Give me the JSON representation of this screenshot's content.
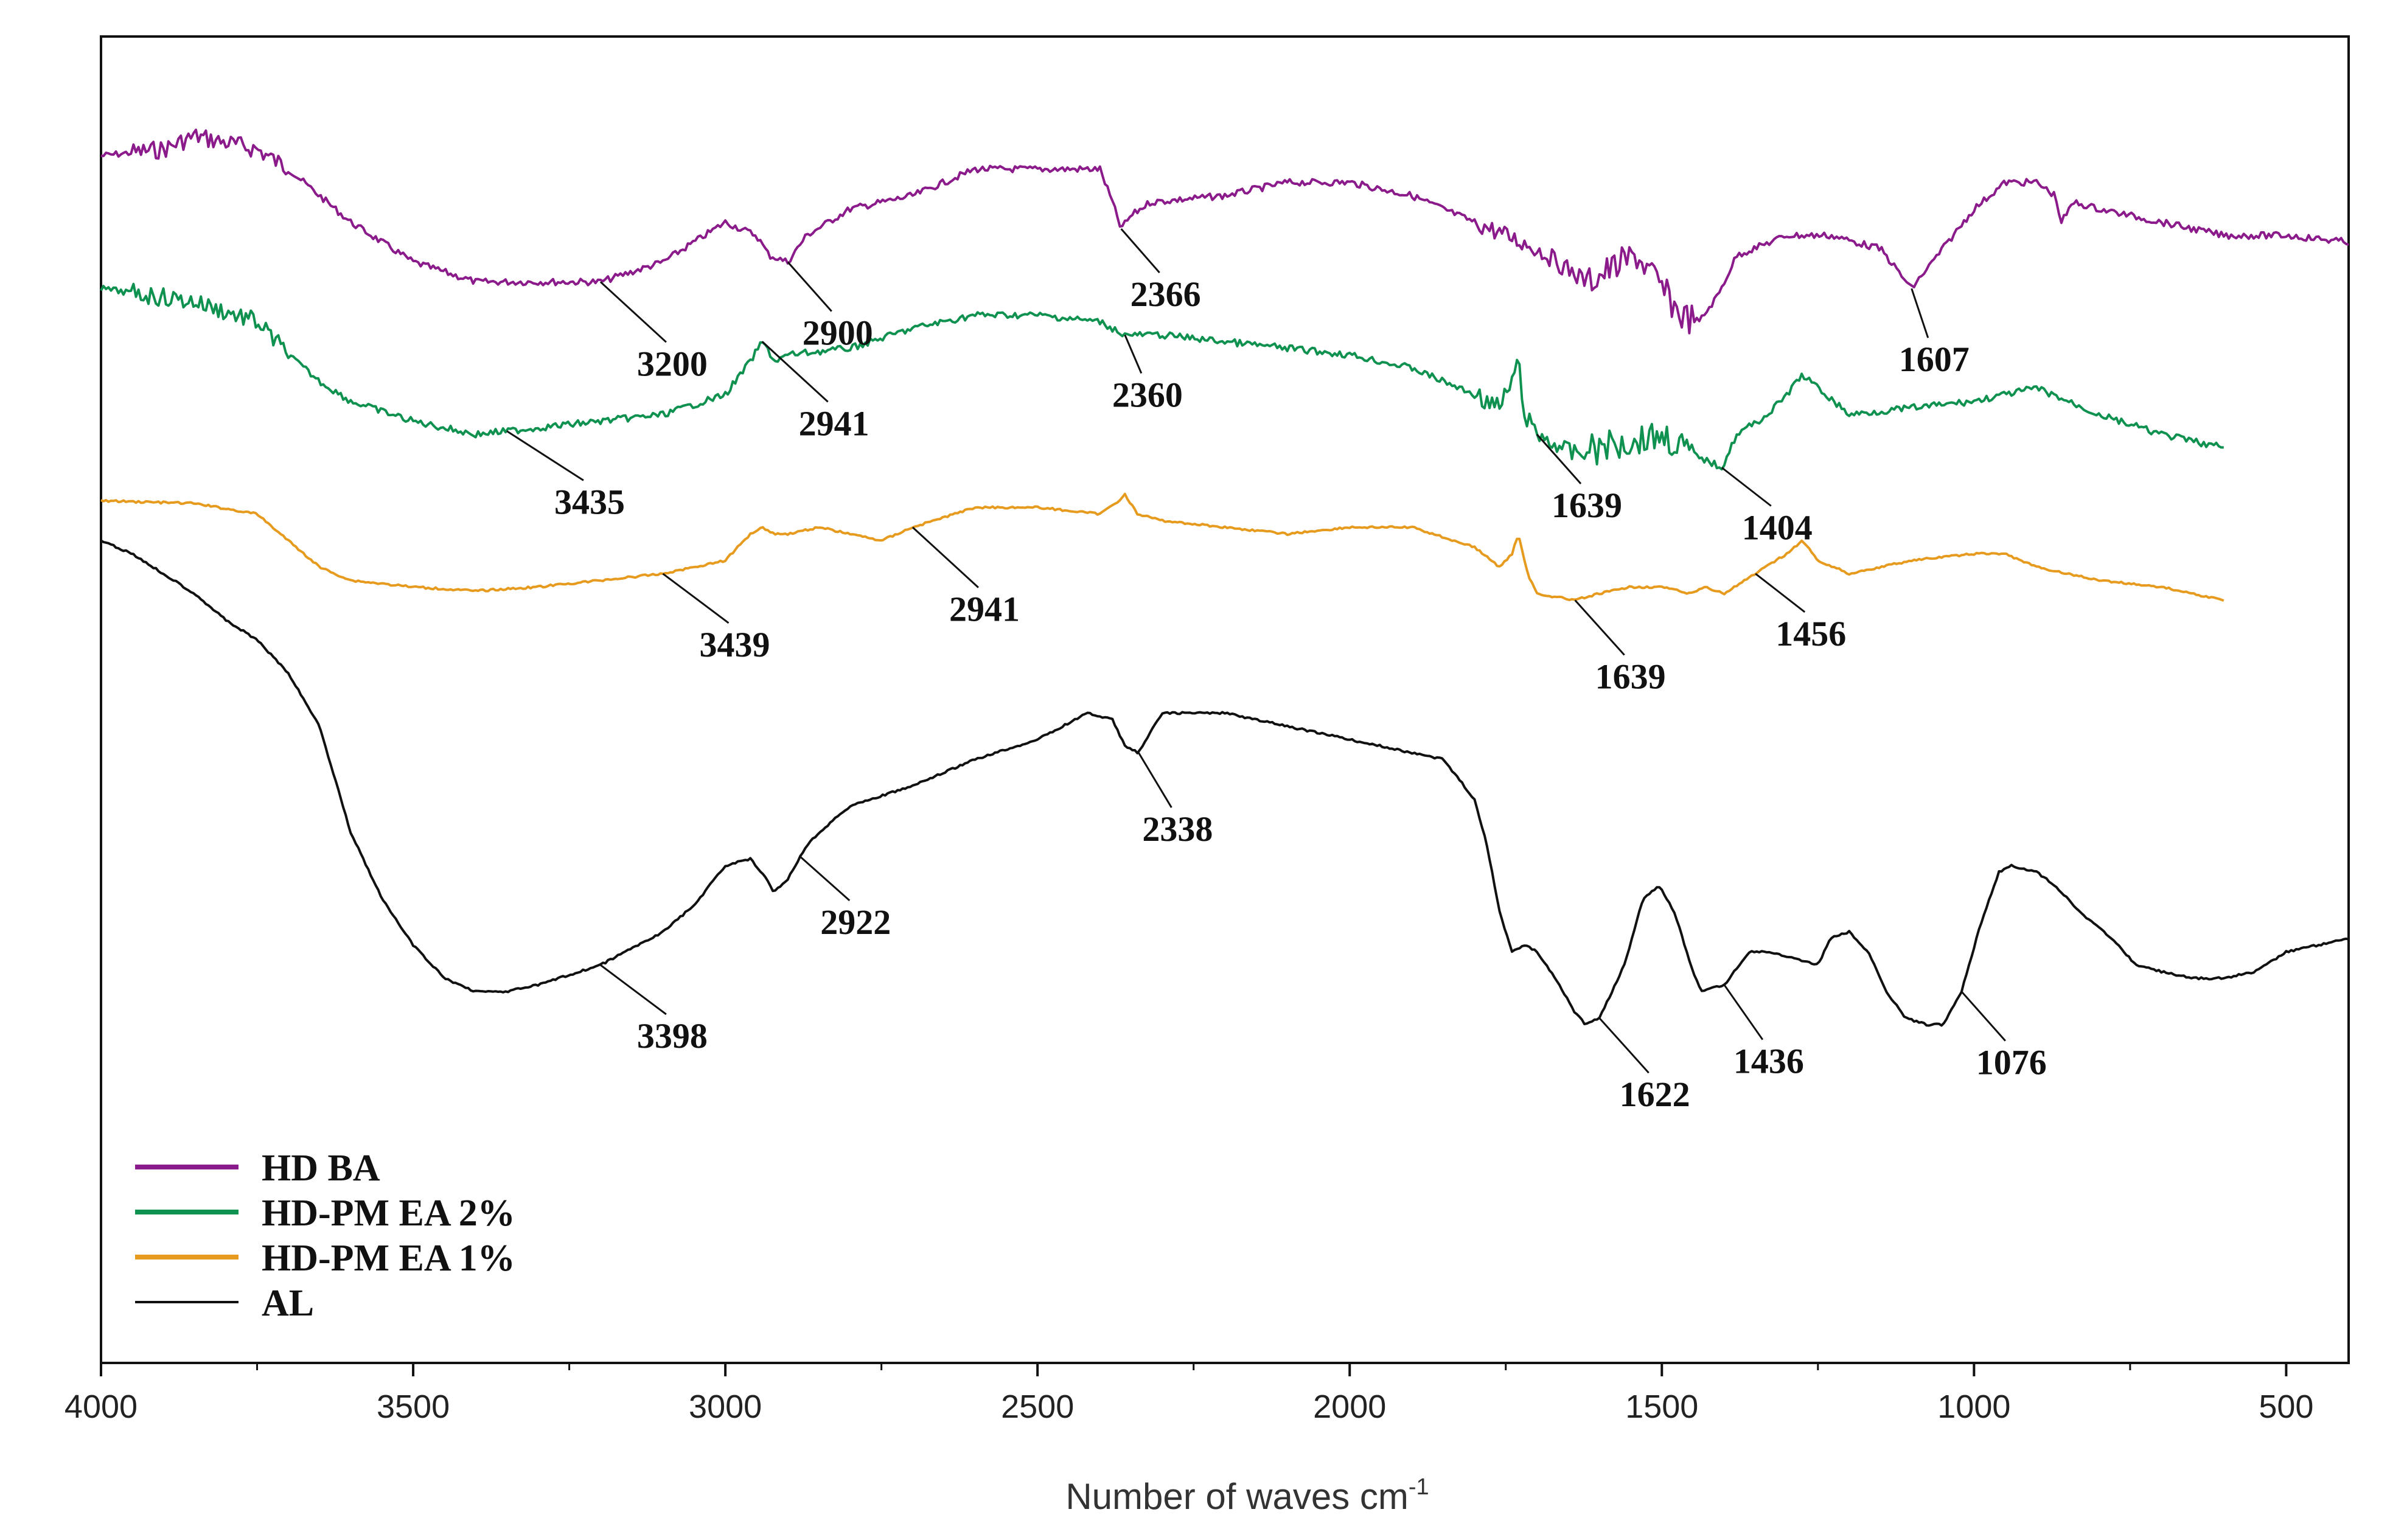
{
  "chart_data": {
    "type": "line",
    "title": "",
    "xlabel": "Number of waves cm",
    "xlabel_superscript": "-1",
    "ylabel": "",
    "xlim": [
      4000,
      400
    ],
    "x_reversed": true,
    "xticks": [
      4000,
      3500,
      3000,
      2500,
      2000,
      1500,
      1000,
      500
    ],
    "grid": false,
    "legend_position": "bottom-left",
    "series": [
      {
        "name": "HD BA",
        "color": "#8b1a8b",
        "noisy": true,
        "points": [
          [
            4000,
            0.09
          ],
          [
            3900,
            0.085
          ],
          [
            3850,
            0.075
          ],
          [
            3800,
            0.08
          ],
          [
            3750,
            0.085
          ],
          [
            3700,
            0.1
          ],
          [
            3650,
            0.12
          ],
          [
            3600,
            0.14
          ],
          [
            3500,
            0.17
          ],
          [
            3400,
            0.185
          ],
          [
            3200,
            0.185
          ],
          [
            3100,
            0.17
          ],
          [
            3000,
            0.14
          ],
          [
            2950,
            0.15
          ],
          [
            2930,
            0.165
          ],
          [
            2900,
            0.17
          ],
          [
            2870,
            0.15
          ],
          [
            2800,
            0.13
          ],
          [
            2700,
            0.12
          ],
          [
            2600,
            0.1
          ],
          [
            2500,
            0.1
          ],
          [
            2400,
            0.1
          ],
          [
            2380,
            0.125
          ],
          [
            2366,
            0.145
          ],
          [
            2350,
            0.135
          ],
          [
            2320,
            0.125
          ],
          [
            2200,
            0.12
          ],
          [
            2100,
            0.11
          ],
          [
            2000,
            0.11
          ],
          [
            1900,
            0.12
          ],
          [
            1800,
            0.14
          ],
          [
            1700,
            0.16
          ],
          [
            1620,
            0.185
          ],
          [
            1580,
            0.175
          ],
          [
            1540,
            0.165
          ],
          [
            1500,
            0.19
          ],
          [
            1470,
            0.21
          ],
          [
            1440,
            0.215
          ],
          [
            1410,
            0.195
          ],
          [
            1380,
            0.165
          ],
          [
            1300,
            0.15
          ],
          [
            1230,
            0.15
          ],
          [
            1150,
            0.16
          ],
          [
            1100,
            0.19
          ],
          [
            1050,
            0.16
          ],
          [
            1000,
            0.13
          ],
          [
            950,
            0.11
          ],
          [
            900,
            0.11
          ],
          [
            870,
            0.12
          ],
          [
            860,
            0.14
          ],
          [
            840,
            0.125
          ],
          [
            800,
            0.13
          ],
          [
            700,
            0.14
          ],
          [
            600,
            0.15
          ],
          [
            500,
            0.15
          ],
          [
            400,
            0.155
          ]
        ]
      },
      {
        "name": "HD-PM  EA 2%",
        "color": "#0f9150",
        "noisy": true,
        "points": [
          [
            4000,
            0.19
          ],
          [
            3850,
            0.2
          ],
          [
            3750,
            0.215
          ],
          [
            3700,
            0.24
          ],
          [
            3650,
            0.26
          ],
          [
            3600,
            0.275
          ],
          [
            3500,
            0.29
          ],
          [
            3400,
            0.3
          ],
          [
            3300,
            0.295
          ],
          [
            3200,
            0.29
          ],
          [
            3100,
            0.285
          ],
          [
            3000,
            0.27
          ],
          [
            2960,
            0.245
          ],
          [
            2941,
            0.23
          ],
          [
            2920,
            0.245
          ],
          [
            2900,
            0.24
          ],
          [
            2800,
            0.235
          ],
          [
            2700,
            0.22
          ],
          [
            2600,
            0.21
          ],
          [
            2500,
            0.21
          ],
          [
            2400,
            0.215
          ],
          [
            2360,
            0.225
          ],
          [
            2300,
            0.225
          ],
          [
            2200,
            0.23
          ],
          [
            2100,
            0.235
          ],
          [
            2000,
            0.24
          ],
          [
            1900,
            0.25
          ],
          [
            1800,
            0.27
          ],
          [
            1760,
            0.28
          ],
          [
            1740,
            0.26
          ],
          [
            1730,
            0.245
          ],
          [
            1720,
            0.285
          ],
          [
            1700,
            0.3
          ],
          [
            1639,
            0.315
          ],
          [
            1600,
            0.31
          ],
          [
            1550,
            0.305
          ],
          [
            1500,
            0.3
          ],
          [
            1450,
            0.315
          ],
          [
            1404,
            0.325
          ],
          [
            1380,
            0.3
          ],
          [
            1330,
            0.285
          ],
          [
            1300,
            0.27
          ],
          [
            1275,
            0.255
          ],
          [
            1250,
            0.265
          ],
          [
            1200,
            0.285
          ],
          [
            1100,
            0.28
          ],
          [
            1000,
            0.275
          ],
          [
            900,
            0.265
          ],
          [
            850,
            0.275
          ],
          [
            800,
            0.285
          ],
          [
            700,
            0.3
          ],
          [
            650,
            0.305
          ],
          [
            600,
            0.31
          ]
        ]
      },
      {
        "name": "HD-PM  EA 1%",
        "color": "#e69a1e",
        "noisy": false,
        "points": [
          [
            4000,
            0.35
          ],
          [
            3850,
            0.352
          ],
          [
            3750,
            0.36
          ],
          [
            3700,
            0.38
          ],
          [
            3650,
            0.4
          ],
          [
            3600,
            0.41
          ],
          [
            3500,
            0.415
          ],
          [
            3400,
            0.418
          ],
          [
            3300,
            0.415
          ],
          [
            3200,
            0.41
          ],
          [
            3100,
            0.405
          ],
          [
            3000,
            0.395
          ],
          [
            2960,
            0.375
          ],
          [
            2941,
            0.37
          ],
          [
            2920,
            0.375
          ],
          [
            2900,
            0.375
          ],
          [
            2850,
            0.37
          ],
          [
            2800,
            0.375
          ],
          [
            2750,
            0.38
          ],
          [
            2700,
            0.37
          ],
          [
            2600,
            0.355
          ],
          [
            2500,
            0.355
          ],
          [
            2400,
            0.36
          ],
          [
            2370,
            0.35
          ],
          [
            2360,
            0.345
          ],
          [
            2340,
            0.36
          ],
          [
            2300,
            0.365
          ],
          [
            2200,
            0.37
          ],
          [
            2100,
            0.375
          ],
          [
            2000,
            0.37
          ],
          [
            1900,
            0.37
          ],
          [
            1800,
            0.385
          ],
          [
            1760,
            0.4
          ],
          [
            1740,
            0.39
          ],
          [
            1730,
            0.375
          ],
          [
            1715,
            0.405
          ],
          [
            1700,
            0.42
          ],
          [
            1639,
            0.425
          ],
          [
            1600,
            0.42
          ],
          [
            1550,
            0.415
          ],
          [
            1500,
            0.415
          ],
          [
            1456,
            0.42
          ],
          [
            1430,
            0.415
          ],
          [
            1400,
            0.42
          ],
          [
            1350,
            0.405
          ],
          [
            1300,
            0.39
          ],
          [
            1275,
            0.38
          ],
          [
            1250,
            0.395
          ],
          [
            1200,
            0.405
          ],
          [
            1150,
            0.4
          ],
          [
            1100,
            0.395
          ],
          [
            1000,
            0.39
          ],
          [
            950,
            0.39
          ],
          [
            900,
            0.4
          ],
          [
            850,
            0.405
          ],
          [
            800,
            0.41
          ],
          [
            700,
            0.415
          ],
          [
            650,
            0.42
          ],
          [
            600,
            0.425
          ]
        ]
      },
      {
        "name": "AL",
        "color": "#111111",
        "noisy": false,
        "points": [
          [
            4000,
            0.38
          ],
          [
            3950,
            0.39
          ],
          [
            3900,
            0.405
          ],
          [
            3850,
            0.42
          ],
          [
            3800,
            0.44
          ],
          [
            3750,
            0.455
          ],
          [
            3700,
            0.48
          ],
          [
            3650,
            0.52
          ],
          [
            3600,
            0.6
          ],
          [
            3550,
            0.65
          ],
          [
            3500,
            0.685
          ],
          [
            3450,
            0.71
          ],
          [
            3400,
            0.72
          ],
          [
            3350,
            0.72
          ],
          [
            3300,
            0.715
          ],
          [
            3200,
            0.7
          ],
          [
            3100,
            0.675
          ],
          [
            3050,
            0.655
          ],
          [
            3000,
            0.625
          ],
          [
            2960,
            0.62
          ],
          [
            2935,
            0.635
          ],
          [
            2922,
            0.645
          ],
          [
            2900,
            0.635
          ],
          [
            2870,
            0.61
          ],
          [
            2850,
            0.6
          ],
          [
            2800,
            0.58
          ],
          [
            2700,
            0.565
          ],
          [
            2600,
            0.545
          ],
          [
            2500,
            0.53
          ],
          [
            2420,
            0.51
          ],
          [
            2380,
            0.515
          ],
          [
            2360,
            0.535
          ],
          [
            2338,
            0.54
          ],
          [
            2320,
            0.525
          ],
          [
            2300,
            0.51
          ],
          [
            2200,
            0.51
          ],
          [
            2100,
            0.52
          ],
          [
            2000,
            0.53
          ],
          [
            1900,
            0.54
          ],
          [
            1850,
            0.545
          ],
          [
            1800,
            0.575
          ],
          [
            1780,
            0.61
          ],
          [
            1760,
            0.66
          ],
          [
            1740,
            0.69
          ],
          [
            1720,
            0.685
          ],
          [
            1700,
            0.69
          ],
          [
            1670,
            0.71
          ],
          [
            1640,
            0.735
          ],
          [
            1622,
            0.745
          ],
          [
            1600,
            0.74
          ],
          [
            1560,
            0.7
          ],
          [
            1530,
            0.65
          ],
          [
            1505,
            0.64
          ],
          [
            1480,
            0.66
          ],
          [
            1450,
            0.705
          ],
          [
            1436,
            0.72
          ],
          [
            1400,
            0.715
          ],
          [
            1360,
            0.69
          ],
          [
            1330,
            0.69
          ],
          [
            1290,
            0.695
          ],
          [
            1250,
            0.7
          ],
          [
            1230,
            0.68
          ],
          [
            1200,
            0.675
          ],
          [
            1170,
            0.69
          ],
          [
            1140,
            0.72
          ],
          [
            1110,
            0.74
          ],
          [
            1076,
            0.745
          ],
          [
            1050,
            0.745
          ],
          [
            1020,
            0.72
          ],
          [
            990,
            0.67
          ],
          [
            960,
            0.63
          ],
          [
            940,
            0.625
          ],
          [
            900,
            0.63
          ],
          [
            870,
            0.64
          ],
          [
            830,
            0.66
          ],
          [
            780,
            0.68
          ],
          [
            740,
            0.7
          ],
          [
            700,
            0.705
          ],
          [
            650,
            0.71
          ],
          [
            600,
            0.71
          ],
          [
            550,
            0.705
          ],
          [
            500,
            0.69
          ],
          [
            450,
            0.685
          ],
          [
            400,
            0.68
          ]
        ]
      }
    ],
    "annotations": [
      {
        "text": "3200",
        "series": "HD BA",
        "x": 3200,
        "dx": 60,
        "dy": 55
      },
      {
        "text": "2900",
        "series": "HD BA",
        "x": 2900,
        "dx": 40,
        "dy": 45
      },
      {
        "text": "2366",
        "series": "HD BA",
        "x": 2366,
        "dx": 35,
        "dy": 40
      },
      {
        "text": "1607",
        "series": "HD BA",
        "x": 1100,
        "dx": 15,
        "dy": 45
      },
      {
        "text": "3435",
        "series": "HD-PM  EA 2%",
        "x": 3350,
        "dx": 70,
        "dy": 45
      },
      {
        "text": "2941",
        "series": "HD-PM  EA 2%",
        "x": 2941,
        "dx": 60,
        "dy": 55
      },
      {
        "text": "2360",
        "series": "HD-PM  EA 2%",
        "x": 2360,
        "dx": 15,
        "dy": 35
      },
      {
        "text": "1639",
        "series": "HD-PM  EA 2%",
        "x": 1700,
        "dx": 40,
        "dy": 45
      },
      {
        "text": "1404",
        "series": "HD-PM  EA 2%",
        "x": 1404,
        "dx": 45,
        "dy": 35
      },
      {
        "text": "3439",
        "series": "HD-PM  EA 1%",
        "x": 3100,
        "dx": 60,
        "dy": 45
      },
      {
        "text": "2941",
        "series": "HD-PM  EA 1%",
        "x": 2700,
        "dx": 60,
        "dy": 55
      },
      {
        "text": "1639",
        "series": "HD-PM  EA 1%",
        "x": 1639,
        "dx": 45,
        "dy": 50
      },
      {
        "text": "1456",
        "series": "HD-PM  EA 1%",
        "x": 1350,
        "dx": 45,
        "dy": 35
      },
      {
        "text": "3398",
        "series": "AL",
        "x": 3200,
        "dx": 60,
        "dy": 45
      },
      {
        "text": "2922",
        "series": "AL",
        "x": 2880,
        "dx": 45,
        "dy": 40
      },
      {
        "text": "2338",
        "series": "AL",
        "x": 2338,
        "dx": 30,
        "dy": 50
      },
      {
        "text": "1622",
        "series": "AL",
        "x": 1600,
        "dx": 45,
        "dy": 50
      },
      {
        "text": "1436",
        "series": "AL",
        "x": 1400,
        "dx": 35,
        "dy": 50
      },
      {
        "text": "1076",
        "series": "AL",
        "x": 1020,
        "dx": 40,
        "dy": 45
      }
    ],
    "legend": [
      {
        "label": "HD BA",
        "color": "#8b1a8b",
        "thick": true
      },
      {
        "label": "HD-PM  EA 2%",
        "color": "#0f9150",
        "thick": true
      },
      {
        "label": "HD-PM  EA 1%",
        "color": "#e69a1e",
        "thick": true
      },
      {
        "label": "AL",
        "color": "#111111",
        "thick": false
      }
    ]
  }
}
